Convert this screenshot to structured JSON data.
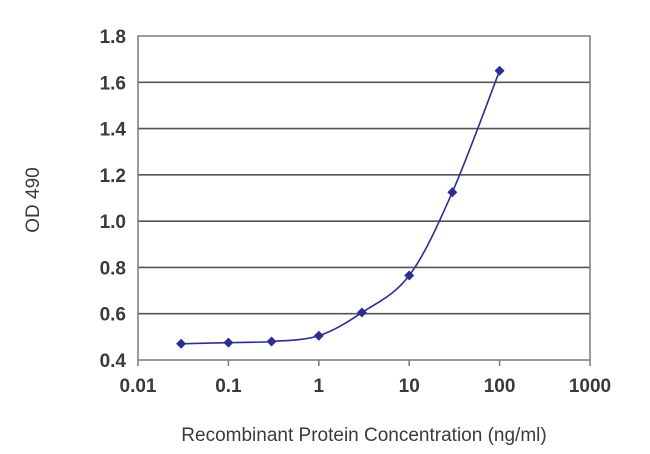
{
  "chart_data": {
    "type": "line",
    "title": "",
    "xlabel": "Recombinant Protein Concentration (ng/ml)",
    "ylabel": "OD 490",
    "x_scale": "log",
    "xlim": [
      0.01,
      1000
    ],
    "ylim": [
      0.4,
      1.8
    ],
    "x_ticks": [
      0.01,
      0.1,
      1,
      10,
      100,
      1000
    ],
    "x_tick_labels": [
      "0.01",
      "0.1",
      "1",
      "10",
      "100",
      "1000"
    ],
    "y_ticks": [
      0.4,
      0.6,
      0.8,
      1.0,
      1.2,
      1.4,
      1.6,
      1.8
    ],
    "y_tick_labels": [
      "0.4",
      "0.6",
      "0.8",
      "1.0",
      "1.2",
      "1.4",
      "1.6",
      "1.8"
    ],
    "grid": "horizontal",
    "legend": "none",
    "series": [
      {
        "x": [
          0.03,
          0.1,
          0.3,
          1,
          3,
          10,
          30,
          100
        ],
        "y": [
          0.47,
          0.475,
          0.48,
          0.505,
          0.605,
          0.765,
          1.125,
          1.65
        ]
      }
    ],
    "colors": {
      "series": "#2b2f8f",
      "grid": "#555555",
      "frame": "#7a7a7a"
    }
  }
}
